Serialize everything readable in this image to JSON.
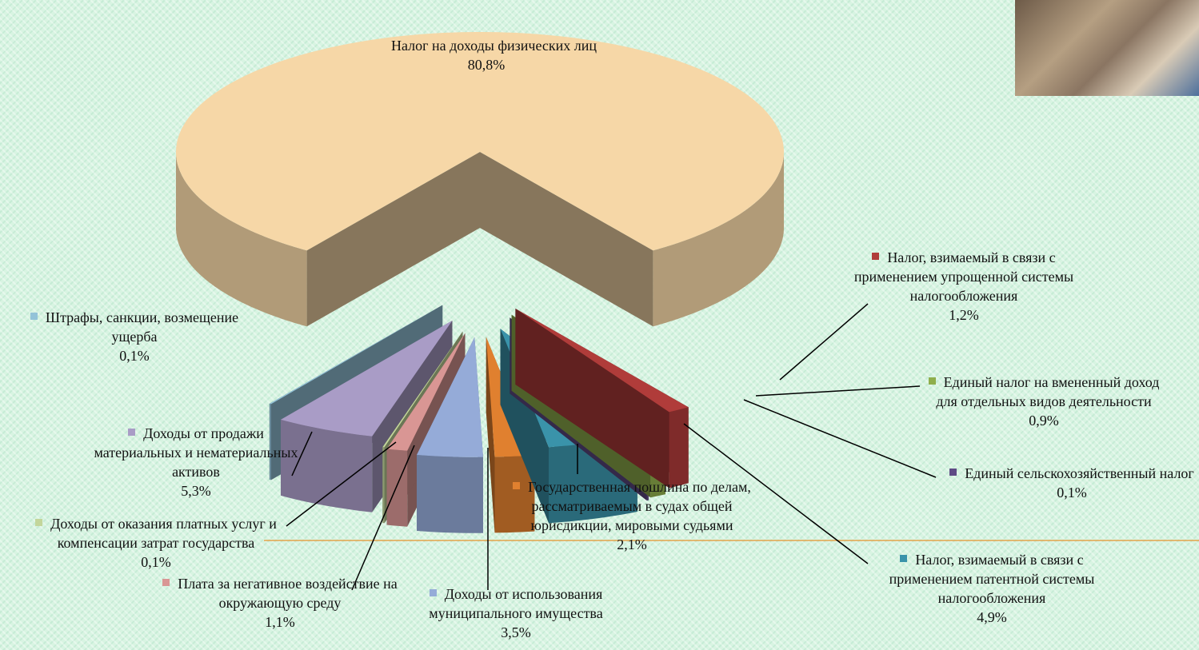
{
  "chart_data": {
    "type": "pie",
    "categories": [
      "Налог на доходы физических лиц",
      "Налог, взимаемый в связи с применением упрощенной системы налогообложения",
      "Единый налог на вмененный доход для отдельных видов деятельности",
      "Единый сельскохозяйственный налог",
      "Налог, взимаемый в связи с применением патентной системы налогообложения",
      "Государственная пошлина по делам, рассматриваемым в судах общей юрисдикции, мировыми судьями",
      "Доходы от использования муниципального имущества",
      "Плата за негативное воздействие на окружающую среду",
      "Доходы от оказания платных услуг и компенсации затрат государства",
      "Доходы от продажи материальных и нематериальных активов",
      "Штрафы, санкции, возмещение ущерба"
    ],
    "values": [
      80.8,
      1.2,
      0.9,
      0.1,
      4.9,
      2.1,
      3.5,
      1.1,
      0.1,
      5.3,
      0.1
    ],
    "value_labels": [
      "80,8%",
      "1,2%",
      "0,9%",
      "0,1%",
      "4,9%",
      "2,1%",
      "3,5%",
      "1,1%",
      "0,1%",
      "5,3%",
      "0,1%"
    ],
    "colors": [
      "#f6d7a7",
      "#b03c3a",
      "#8fae4c",
      "#5f4b85",
      "#3a93aa",
      "#e0802f",
      "#95abd8",
      "#d99694",
      "#c3d69b",
      "#a99cc6",
      "#93c3d8"
    ]
  }
}
